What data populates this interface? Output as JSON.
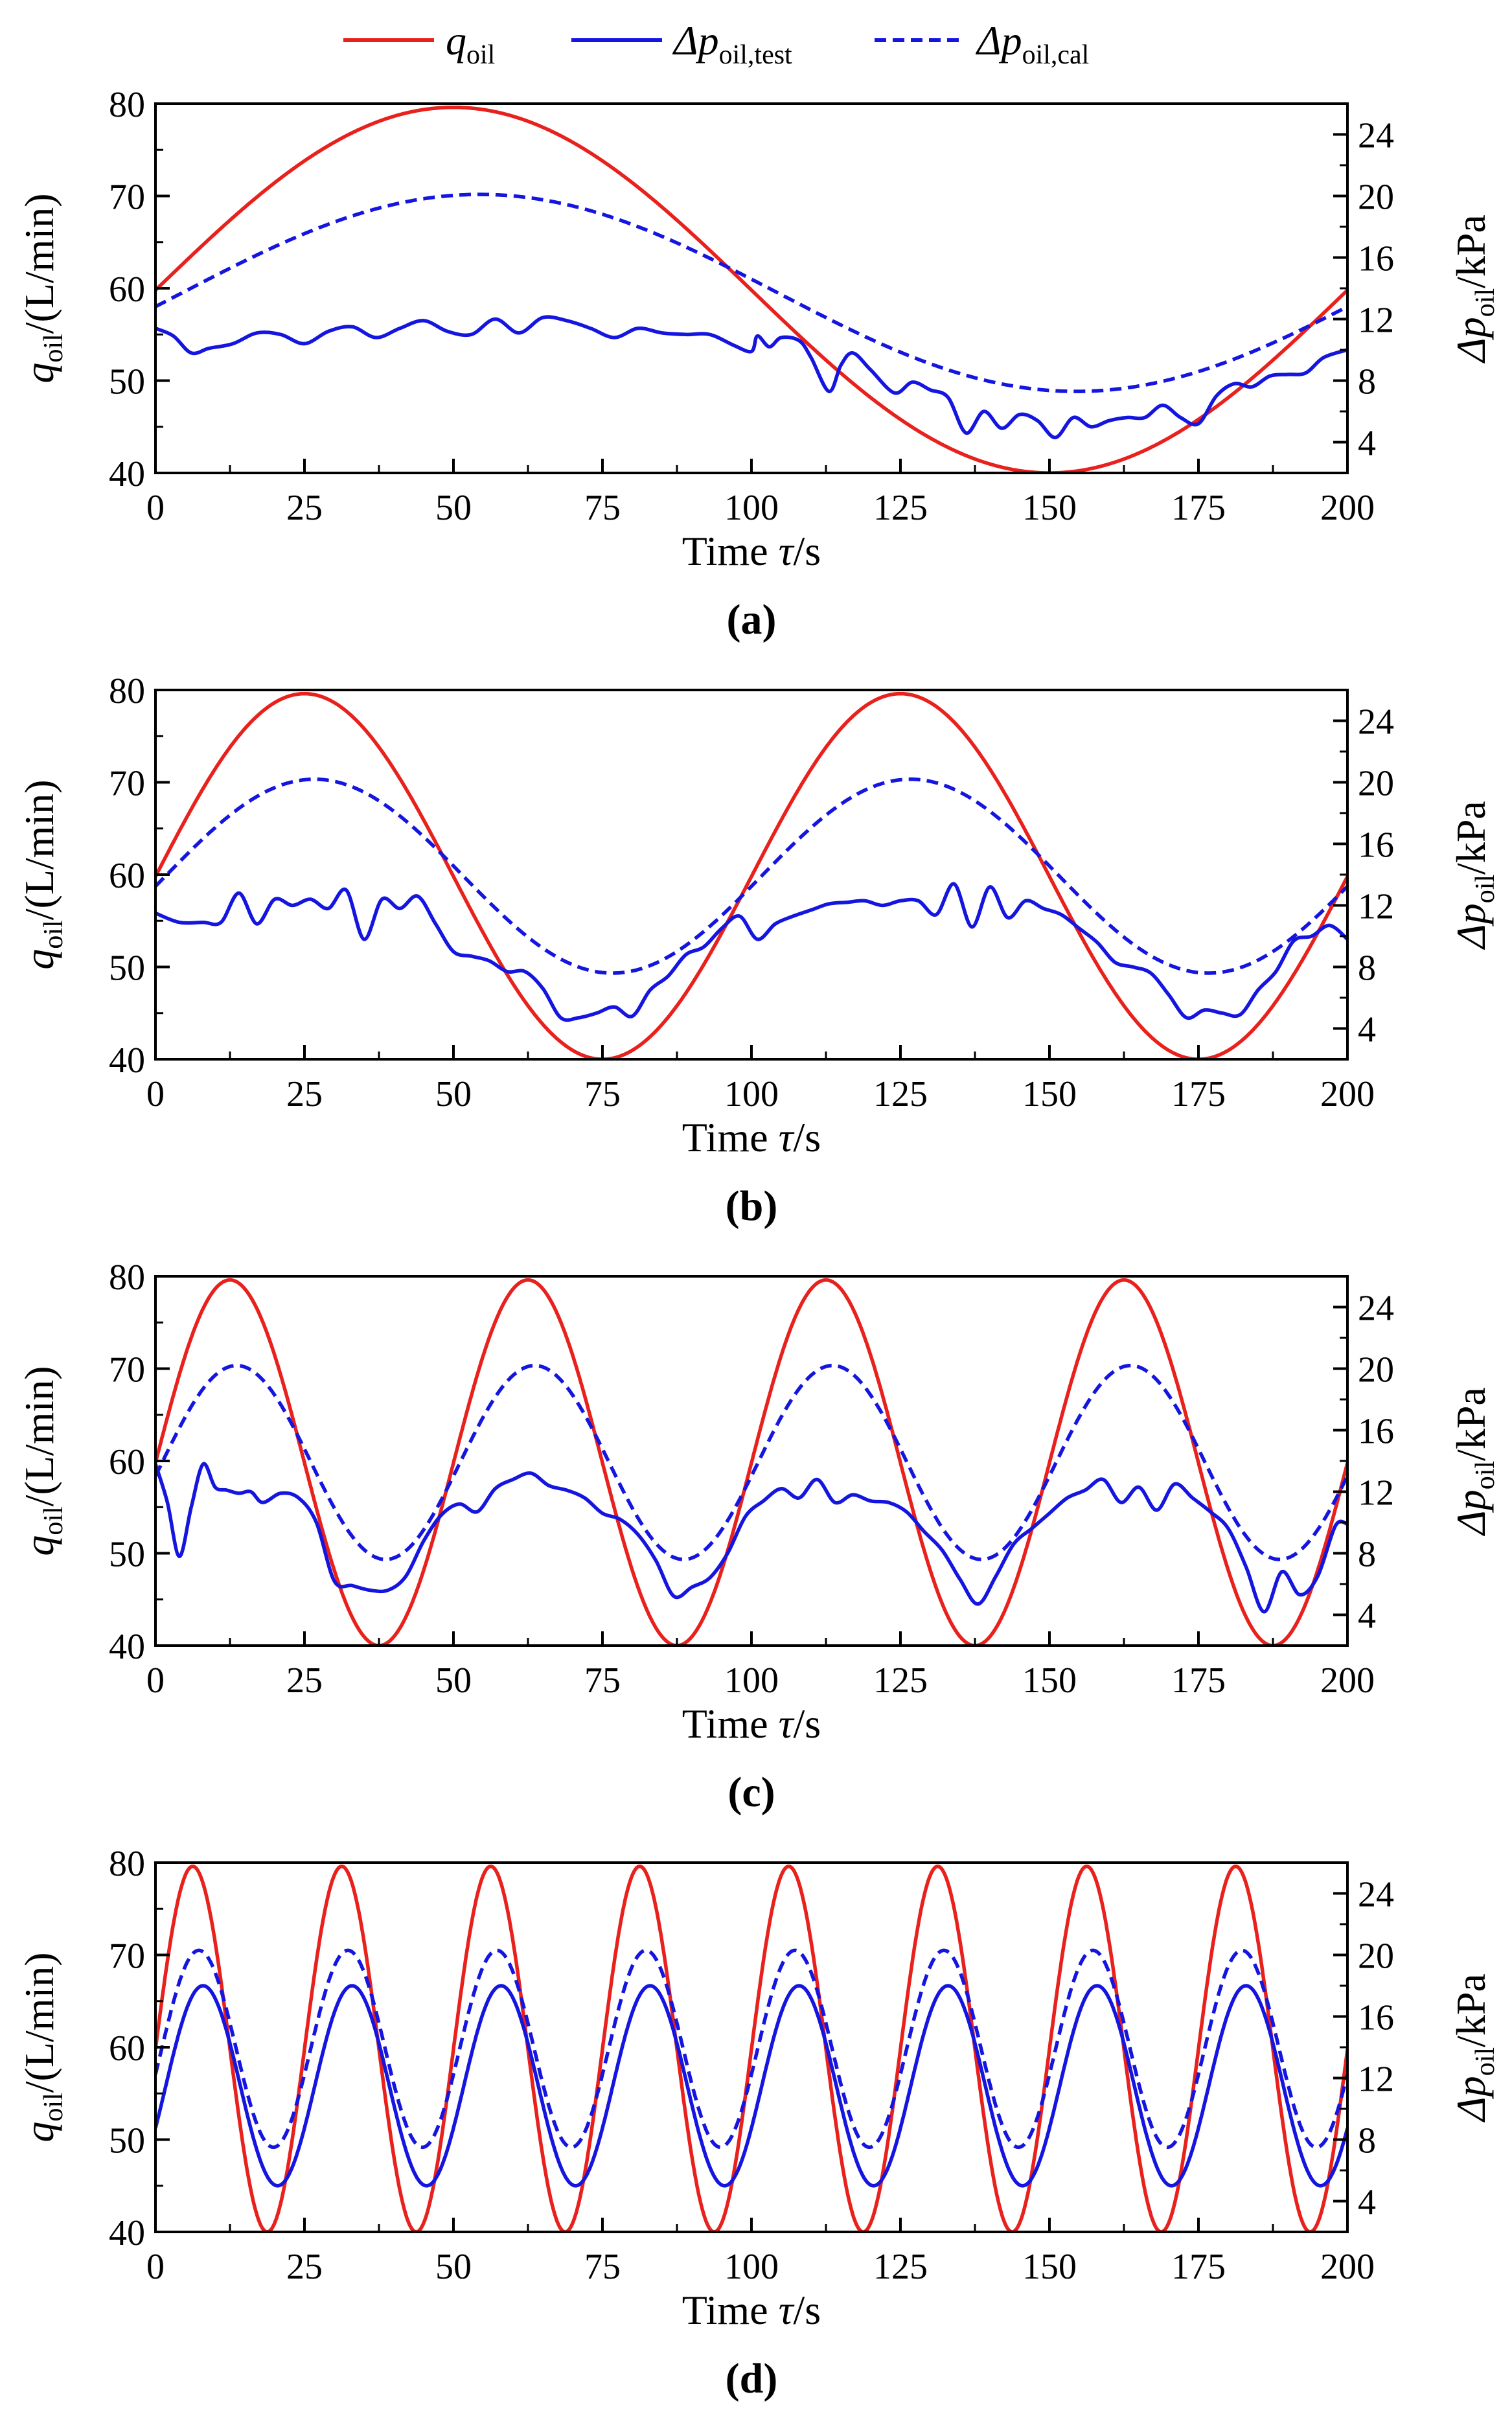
{
  "legend": {
    "items": [
      {
        "symbol": "q",
        "sub": "oil",
        "color": "#e8211d",
        "dash": false
      },
      {
        "symbol": "Δp",
        "sub": "oil,test",
        "color": "#1515e0",
        "dash": false
      },
      {
        "symbol": "Δp",
        "sub": "oil,cal",
        "color": "#1515e0",
        "dash": true
      }
    ]
  },
  "axes": {
    "x_label_text": "Time ",
    "x_label_symbol": "τ",
    "x_label_unit": "/s",
    "x_ticks": [
      "0",
      "25",
      "50",
      "75",
      "100",
      "125",
      "150",
      "175",
      "200"
    ],
    "y_left_symbol": "q",
    "y_left_sub": "oil",
    "y_left_unit": "/(L/min)",
    "y_left_ticks": [
      "40",
      "50",
      "60",
      "70",
      "80"
    ],
    "y_right_symbol": "Δp",
    "y_right_sub": "oil",
    "y_right_unit": "/kPa",
    "y_right_ticks": [
      "4",
      "8",
      "12",
      "16",
      "20",
      "24"
    ]
  },
  "colors": {
    "red": "#e8211d",
    "blue": "#1515e0"
  },
  "chart_data": [
    {
      "type": "line",
      "panel": "(a)",
      "panel_open": "(",
      "panel_letter": "a",
      "panel_close": ")",
      "x_range": [
        0,
        200
      ],
      "ylim_left": [
        40,
        80
      ],
      "ylim_right": [
        2,
        26
      ],
      "series": [
        {
          "name": "q_oil",
          "axis": "left",
          "model": {
            "mean": 59.8,
            "amp": 19.8,
            "period": 200,
            "phase_deg": 0
          }
        },
        {
          "name": "Δp_oil,cal",
          "axis": "right",
          "model": {
            "mean": 13.7,
            "amp": 6.4,
            "period": 200,
            "phase_deg": 8
          }
        },
        {
          "name": "Δp_oil,test",
          "axis": "right",
          "x": [
            0,
            3,
            6,
            9,
            13,
            17,
            21,
            25,
            29,
            33,
            37,
            41,
            45,
            49,
            53,
            57,
            61,
            65,
            69,
            73,
            77,
            81,
            85,
            89,
            93,
            97,
            100,
            101,
            103,
            105,
            108,
            110,
            113,
            115,
            117,
            120,
            124,
            127,
            130,
            133,
            136,
            139,
            142,
            145,
            148,
            151,
            154,
            157,
            160,
            163,
            166,
            169,
            172,
            175,
            178,
            181,
            184,
            187,
            190,
            193,
            196,
            200
          ],
          "y": [
            11.4,
            10.9,
            9.8,
            10.1,
            10.4,
            11.1,
            11.0,
            10.4,
            11.2,
            11.5,
            10.8,
            11.4,
            11.9,
            11.2,
            11.0,
            12.0,
            11.1,
            12.1,
            11.9,
            11.4,
            10.8,
            11.4,
            11.1,
            11.0,
            11.0,
            10.3,
            9.9,
            10.9,
            10.2,
            10.8,
            10.6,
            9.5,
            7.3,
            9.0,
            9.8,
            8.7,
            7.2,
            7.9,
            7.4,
            6.9,
            4.6,
            6.0,
            4.9,
            5.8,
            5.4,
            4.3,
            5.6,
            5.0,
            5.4,
            5.6,
            5.6,
            6.4,
            5.6,
            5.2,
            7.0,
            7.8,
            7.6,
            8.3,
            8.4,
            8.5,
            9.5,
            10.0
          ]
        }
      ]
    },
    {
      "type": "line",
      "panel": "(b)",
      "panel_open": "(",
      "panel_letter": "b",
      "panel_close": ")",
      "x_range": [
        0,
        200
      ],
      "ylim_left": [
        40,
        80
      ],
      "ylim_right": [
        2,
        26
      ],
      "series": [
        {
          "name": "q_oil",
          "axis": "left",
          "model": {
            "mean": 59.8,
            "amp": 19.8,
            "period": 100,
            "phase_deg": 0
          }
        },
        {
          "name": "Δp_oil,cal",
          "axis": "right",
          "model": {
            "mean": 13.9,
            "amp": 6.3,
            "period": 100,
            "phase_deg": 6
          }
        },
        {
          "name": "Δp_oil,test",
          "axis": "right",
          "x": [
            0,
            4,
            8,
            11,
            14,
            17,
            20,
            23,
            26,
            29,
            32,
            35,
            38,
            41,
            44,
            47,
            50,
            53,
            56,
            59,
            62,
            65,
            68,
            71,
            74,
            77,
            80,
            83,
            86,
            89,
            92,
            95,
            98,
            101,
            104,
            107,
            110,
            113,
            116,
            119,
            122,
            125,
            128,
            131,
            134,
            137,
            140,
            143,
            146,
            149,
            152,
            155,
            158,
            161,
            164,
            167,
            170,
            173,
            176,
            179,
            182,
            185,
            188,
            191,
            194,
            197,
            200
          ],
          "y": [
            11.5,
            10.9,
            10.9,
            10.9,
            12.8,
            10.8,
            12.4,
            12.0,
            12.4,
            11.8,
            13.0,
            9.8,
            12.4,
            11.8,
            12.6,
            10.8,
            9.0,
            8.7,
            8.4,
            7.7,
            7.7,
            6.6,
            4.7,
            4.7,
            5.0,
            5.4,
            4.8,
            6.5,
            7.4,
            8.8,
            9.3,
            10.5,
            11.3,
            9.8,
            10.8,
            11.3,
            11.7,
            12.1,
            12.2,
            12.3,
            12.0,
            12.3,
            12.3,
            11.4,
            13.4,
            10.6,
            13.2,
            11.2,
            12.3,
            11.8,
            11.4,
            10.5,
            9.6,
            8.3,
            8.0,
            7.6,
            6.2,
            4.7,
            5.2,
            5.0,
            4.9,
            6.5,
            7.7,
            9.7,
            10.0,
            10.7,
            9.8
          ]
        }
      ]
    },
    {
      "type": "line",
      "panel": "(c)",
      "panel_open": "(",
      "panel_letter": "c",
      "panel_close": ")",
      "x_range": [
        0,
        200
      ],
      "ylim_left": [
        40,
        80
      ],
      "ylim_right": [
        2,
        26
      ],
      "series": [
        {
          "name": "q_oil",
          "axis": "left",
          "model": {
            "mean": 59.8,
            "amp": 19.8,
            "period": 50,
            "phase_deg": 0
          }
        },
        {
          "name": "Δp_oil,cal",
          "axis": "right",
          "model": {
            "mean": 13.9,
            "amp": 6.3,
            "period": 50,
            "phase_deg": 8
          }
        },
        {
          "name": "Δp_oil,test",
          "axis": "right",
          "x": [
            0,
            2,
            4,
            6,
            8,
            10,
            12,
            14,
            16,
            18,
            21,
            24,
            27,
            30,
            33,
            36,
            39,
            42,
            45,
            48,
            51,
            54,
            57,
            60,
            63,
            66,
            69,
            72,
            75,
            78,
            81,
            84,
            87,
            90,
            93,
            96,
            99,
            102,
            105,
            108,
            111,
            114,
            117,
            120,
            123,
            126,
            129,
            132,
            135,
            138,
            141,
            144,
            147,
            150,
            153,
            156,
            159,
            162,
            165,
            168,
            171,
            174,
            177,
            180,
            183,
            186,
            189,
            192,
            195,
            198,
            200
          ],
          "y": [
            13.8,
            11.3,
            7.8,
            11.0,
            13.8,
            12.3,
            12.1,
            11.9,
            12.0,
            11.3,
            11.9,
            11.6,
            10.0,
            6.2,
            5.9,
            5.6,
            5.6,
            6.5,
            8.8,
            10.5,
            11.2,
            10.7,
            12.2,
            12.8,
            13.2,
            12.4,
            12.1,
            11.6,
            10.6,
            10.2,
            9.2,
            7.5,
            5.2,
            5.8,
            6.4,
            8.0,
            10.4,
            11.4,
            12.2,
            11.6,
            12.8,
            11.3,
            11.8,
            11.4,
            11.3,
            10.7,
            9.4,
            8.2,
            6.3,
            4.7,
            6.5,
            8.6,
            9.6,
            10.6,
            11.6,
            12.1,
            12.8,
            11.3,
            12.3,
            10.8,
            12.5,
            11.6,
            10.7,
            9.6,
            7.1,
            4.2,
            6.8,
            5.3,
            6.5,
            9.8,
            9.9
          ]
        }
      ]
    },
    {
      "type": "line",
      "panel": "(d)",
      "panel_open": "(",
      "panel_letter": "d",
      "panel_close": ")",
      "x_range": [
        0,
        200
      ],
      "ylim_left": [
        40,
        80
      ],
      "ylim_right": [
        2,
        26
      ],
      "series": [
        {
          "name": "q_oil",
          "axis": "left",
          "model": {
            "mean": 59.8,
            "amp": 19.8,
            "period": 25,
            "phase_deg": 0
          }
        },
        {
          "name": "Δp_oil,cal",
          "axis": "right",
          "model": {
            "mean": 13.9,
            "amp": 6.4,
            "period": 25,
            "phase_deg": 15
          }
        },
        {
          "name": "Δp_oil,test",
          "axis": "right",
          "model": {
            "mean": 11.5,
            "amp": 6.5,
            "period": 25,
            "phase_deg": 25
          }
        }
      ]
    }
  ]
}
